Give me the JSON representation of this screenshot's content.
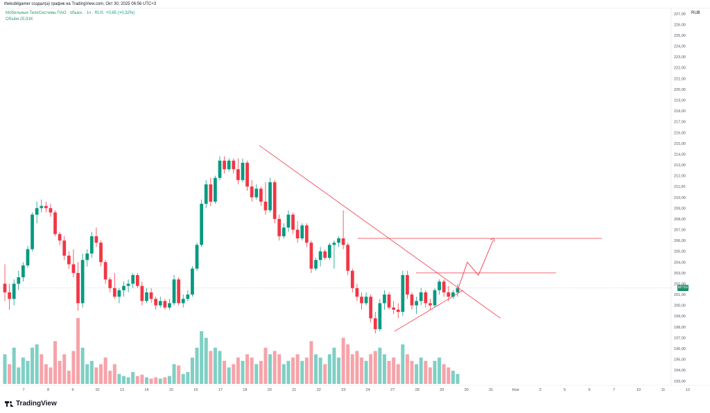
{
  "header": {
    "attribution": "thekubilgamer создал(а) график на TradingView.com, Окт 30, 2025 06:56 UTC+3",
    "symbol_line": {
      "name": "Мобильные ТелеСистемы ПАО · обыкн. · 1ч · RUS",
      "change": "+0,65 (+0,32%)"
    },
    "volume_line": "Объём 25,91K"
  },
  "price_axis": {
    "currency": "RUB",
    "labels": [
      "227,00",
      "226,00",
      "225,00",
      "224,00",
      "223,00",
      "222,00",
      "221,00",
      "220,00",
      "219,00",
      "218,00",
      "217,00",
      "216,00",
      "215,00",
      "214,00",
      "213,00",
      "212,00",
      "211,00",
      "210,00",
      "209,00",
      "208,00",
      "207,00",
      "206,00",
      "205,00",
      "204,00",
      "203,00",
      "202,00",
      "201,00",
      "200,00",
      "199,00",
      "198,00",
      "197,00",
      "196,00",
      "195,00",
      "194,00",
      "193,00"
    ]
  },
  "last_price_tag": {
    "label": "MTSS",
    "color": "#1a8f6b"
  },
  "time_axis": {
    "labels": [
      "7",
      "8",
      "9",
      "10",
      "13",
      "14",
      "15",
      "16",
      "17",
      "18",
      "20",
      "21",
      "22",
      "23",
      "24",
      "27",
      "28",
      "29",
      "30",
      "31",
      "Ноя",
      "3",
      "5",
      "6",
      "7",
      "10",
      "11",
      "12"
    ]
  },
  "footer": {
    "brand": "TradingView"
  },
  "colors": {
    "up": "#089981",
    "down": "#f23645",
    "up_volume": "#7fcfc4",
    "down_volume": "#f6a3a9",
    "drawing": "#f23645",
    "background": "#ffffff"
  },
  "chart_data": {
    "type": "candlestick",
    "interval": "1h",
    "currency": "RUB",
    "ylim": [
      192.6,
      227.5
    ],
    "last_price": 201.6,
    "candles": [
      [
        202.0,
        203.8,
        200.4,
        201.2
      ],
      [
        201.2,
        202.0,
        199.6,
        200.6
      ],
      [
        200.6,
        202.4,
        200.0,
        202.0
      ],
      [
        202.0,
        203.2,
        201.4,
        202.6
      ],
      [
        202.6,
        204.0,
        202.2,
        203.7
      ],
      [
        203.7,
        205.5,
        203.5,
        205.2
      ],
      [
        205.2,
        208.6,
        205.0,
        208.4
      ],
      [
        208.4,
        209.6,
        207.6,
        209.0
      ],
      [
        209.0,
        209.8,
        208.6,
        209.2
      ],
      [
        209.2,
        209.6,
        208.6,
        209.0
      ],
      [
        209.0,
        209.4,
        208.2,
        208.6
      ],
      [
        208.6,
        208.8,
        206.4,
        206.6
      ],
      [
        206.6,
        206.8,
        205.6,
        206.0
      ],
      [
        206.0,
        206.4,
        204.2,
        204.6
      ],
      [
        204.6,
        205.0,
        203.4,
        203.8
      ],
      [
        203.8,
        205.2,
        202.6,
        203.0
      ],
      [
        203.0,
        204.0,
        199.5,
        200.2
      ],
      [
        200.2,
        204.8,
        199.8,
        204.2
      ],
      [
        204.2,
        205.2,
        203.6,
        204.8
      ],
      [
        204.8,
        206.8,
        204.4,
        206.4
      ],
      [
        206.4,
        207.2,
        205.4,
        205.8
      ],
      [
        205.8,
        206.0,
        203.6,
        204.0
      ],
      [
        204.0,
        204.2,
        202.0,
        202.4
      ],
      [
        202.4,
        202.6,
        201.2,
        201.6
      ],
      [
        201.6,
        203.0,
        200.6,
        200.8
      ],
      [
        200.8,
        201.6,
        200.2,
        201.4
      ],
      [
        201.4,
        202.2,
        200.8,
        201.8
      ],
      [
        201.8,
        202.4,
        201.2,
        202.0
      ],
      [
        202.0,
        203.0,
        201.6,
        202.8
      ],
      [
        202.8,
        203.0,
        201.6,
        201.8
      ],
      [
        201.8,
        202.2,
        200.0,
        200.4
      ],
      [
        200.4,
        201.6,
        200.2,
        201.2
      ],
      [
        201.2,
        201.6,
        200.2,
        200.6
      ],
      [
        200.6,
        200.8,
        199.6,
        200.0
      ],
      [
        200.0,
        200.8,
        199.8,
        200.4
      ],
      [
        200.4,
        200.6,
        199.6,
        199.8
      ],
      [
        199.8,
        200.6,
        199.6,
        200.2
      ],
      [
        200.2,
        202.8,
        200.0,
        202.4
      ],
      [
        202.4,
        202.6,
        200.0,
        200.2
      ],
      [
        200.2,
        201.0,
        199.8,
        200.6
      ],
      [
        200.6,
        201.4,
        200.4,
        201.0
      ],
      [
        201.0,
        203.6,
        200.8,
        203.4
      ],
      [
        203.4,
        205.8,
        203.2,
        205.6
      ],
      [
        205.6,
        209.8,
        205.4,
        209.4
      ],
      [
        209.4,
        211.6,
        209.0,
        211.2
      ],
      [
        211.2,
        211.8,
        209.2,
        209.6
      ],
      [
        209.6,
        212.0,
        209.4,
        211.8
      ],
      [
        211.8,
        213.8,
        211.6,
        213.4
      ],
      [
        213.4,
        213.8,
        212.2,
        212.6
      ],
      [
        212.6,
        213.6,
        212.4,
        213.4
      ],
      [
        213.4,
        213.6,
        212.2,
        212.6
      ],
      [
        212.6,
        213.6,
        211.2,
        211.6
      ],
      [
        211.6,
        213.6,
        211.4,
        213.2
      ],
      [
        213.2,
        213.4,
        210.6,
        211.0
      ],
      [
        211.0,
        211.6,
        209.6,
        210.0
      ],
      [
        210.0,
        211.2,
        209.8,
        210.8
      ],
      [
        210.8,
        211.0,
        209.2,
        209.6
      ],
      [
        209.6,
        211.4,
        208.4,
        208.8
      ],
      [
        208.8,
        211.8,
        208.6,
        211.4
      ],
      [
        211.4,
        211.6,
        207.6,
        208.0
      ],
      [
        208.0,
        208.4,
        206.0,
        206.4
      ],
      [
        206.4,
        207.6,
        206.2,
        207.2
      ],
      [
        207.2,
        208.8,
        206.8,
        208.4
      ],
      [
        208.4,
        208.6,
        206.6,
        207.0
      ],
      [
        207.0,
        207.8,
        205.8,
        206.2
      ],
      [
        206.2,
        207.6,
        206.0,
        207.4
      ],
      [
        207.4,
        207.6,
        205.4,
        205.8
      ],
      [
        205.8,
        206.0,
        203.0,
        203.4
      ],
      [
        203.4,
        204.4,
        203.2,
        204.2
      ],
      [
        204.2,
        205.4,
        203.6,
        205.0
      ],
      [
        205.0,
        205.2,
        204.2,
        204.4
      ],
      [
        204.4,
        205.8,
        204.2,
        205.6
      ],
      [
        205.6,
        206.0,
        203.4,
        205.8
      ],
      [
        205.8,
        206.4,
        205.4,
        206.2
      ],
      [
        206.2,
        208.8,
        205.2,
        205.6
      ],
      [
        205.6,
        205.8,
        202.8,
        203.2
      ],
      [
        203.2,
        203.4,
        201.2,
        201.6
      ],
      [
        201.6,
        202.0,
        200.4,
        200.8
      ],
      [
        200.8,
        201.2,
        199.6,
        200.2
      ],
      [
        200.2,
        201.2,
        200.0,
        200.8
      ],
      [
        200.8,
        201.0,
        198.4,
        198.8
      ],
      [
        198.8,
        199.4,
        197.4,
        197.8
      ],
      [
        197.8,
        200.6,
        197.6,
        200.2
      ],
      [
        200.2,
        201.4,
        199.6,
        201.0
      ],
      [
        201.0,
        201.2,
        199.6,
        199.8
      ],
      [
        199.8,
        200.4,
        199.2,
        199.6
      ],
      [
        199.6,
        200.2,
        198.8,
        199.4
      ],
      [
        199.4,
        203.2,
        199.0,
        202.8
      ],
      [
        202.8,
        203.2,
        200.6,
        201.0
      ],
      [
        201.0,
        201.2,
        199.6,
        200.0
      ],
      [
        200.0,
        200.8,
        199.2,
        200.4
      ],
      [
        200.4,
        201.6,
        200.0,
        201.2
      ],
      [
        201.2,
        201.4,
        199.8,
        200.2
      ],
      [
        200.2,
        200.6,
        199.6,
        200.0
      ],
      [
        200.0,
        201.6,
        199.8,
        201.4
      ],
      [
        201.4,
        202.4,
        201.0,
        202.2
      ],
      [
        202.2,
        202.4,
        200.8,
        201.2
      ],
      [
        201.2,
        201.8,
        200.4,
        200.8
      ],
      [
        200.8,
        201.4,
        200.6,
        201.2
      ],
      [
        201.2,
        202.0,
        200.8,
        201.6
      ]
    ],
    "volume": [
      [
        0.45,
        1
      ],
      [
        0.3,
        0
      ],
      [
        0.55,
        1
      ],
      [
        0.25,
        1
      ],
      [
        0.4,
        1
      ],
      [
        0.35,
        1
      ],
      [
        0.55,
        1
      ],
      [
        0.6,
        1
      ],
      [
        0.45,
        0
      ],
      [
        0.3,
        0
      ],
      [
        0.25,
        0
      ],
      [
        0.65,
        0
      ],
      [
        0.35,
        0
      ],
      [
        0.45,
        0
      ],
      [
        0.2,
        0
      ],
      [
        0.5,
        0
      ],
      [
        1.0,
        0
      ],
      [
        0.55,
        1
      ],
      [
        0.3,
        1
      ],
      [
        0.35,
        1
      ],
      [
        0.25,
        0
      ],
      [
        0.3,
        0
      ],
      [
        0.4,
        0
      ],
      [
        0.2,
        0
      ],
      [
        0.3,
        0
      ],
      [
        0.15,
        1
      ],
      [
        0.12,
        1
      ],
      [
        0.1,
        1
      ],
      [
        0.18,
        1
      ],
      [
        0.12,
        0
      ],
      [
        0.14,
        0
      ],
      [
        0.1,
        1
      ],
      [
        0.08,
        0
      ],
      [
        0.1,
        0
      ],
      [
        0.08,
        1
      ],
      [
        0.1,
        0
      ],
      [
        0.12,
        1
      ],
      [
        0.3,
        1
      ],
      [
        0.28,
        0
      ],
      [
        0.15,
        1
      ],
      [
        0.18,
        1
      ],
      [
        0.4,
        1
      ],
      [
        0.55,
        1
      ],
      [
        0.8,
        1
      ],
      [
        0.7,
        1
      ],
      [
        0.5,
        0
      ],
      [
        0.55,
        1
      ],
      [
        0.5,
        1
      ],
      [
        0.35,
        0
      ],
      [
        0.25,
        1
      ],
      [
        0.3,
        0
      ],
      [
        0.4,
        0
      ],
      [
        0.35,
        1
      ],
      [
        0.45,
        0
      ],
      [
        0.4,
        0
      ],
      [
        0.3,
        1
      ],
      [
        0.35,
        0
      ],
      [
        0.55,
        0
      ],
      [
        0.45,
        1
      ],
      [
        0.5,
        0
      ],
      [
        0.45,
        0
      ],
      [
        0.3,
        1
      ],
      [
        0.35,
        1
      ],
      [
        0.4,
        0
      ],
      [
        0.45,
        0
      ],
      [
        0.35,
        1
      ],
      [
        0.4,
        0
      ],
      [
        0.65,
        0
      ],
      [
        0.45,
        1
      ],
      [
        0.4,
        1
      ],
      [
        0.3,
        0
      ],
      [
        0.45,
        1
      ],
      [
        0.55,
        1
      ],
      [
        0.4,
        1
      ],
      [
        0.7,
        0
      ],
      [
        0.6,
        0
      ],
      [
        0.45,
        0
      ],
      [
        0.5,
        0
      ],
      [
        0.4,
        0
      ],
      [
        0.35,
        1
      ],
      [
        0.45,
        0
      ],
      [
        0.5,
        0
      ],
      [
        0.55,
        1
      ],
      [
        0.45,
        1
      ],
      [
        0.35,
        0
      ],
      [
        0.4,
        0
      ],
      [
        0.3,
        0
      ],
      [
        0.6,
        1
      ],
      [
        0.45,
        0
      ],
      [
        0.35,
        0
      ],
      [
        0.3,
        1
      ],
      [
        0.4,
        1
      ],
      [
        0.35,
        0
      ],
      [
        0.25,
        0
      ],
      [
        0.35,
        1
      ],
      [
        0.4,
        1
      ],
      [
        0.3,
        0
      ],
      [
        0.25,
        0
      ],
      [
        0.2,
        1
      ],
      [
        0.15,
        1
      ]
    ],
    "drawings": {
      "descending_trendline": [
        [
          0,
          214.8
        ],
        [
          1,
          198.8
        ]
      ],
      "ascending_trendline": [
        [
          0,
          197.6
        ],
        [
          1,
          201.4
        ]
      ],
      "resistance_upper": 206.2,
      "resistance_lower": 203.0,
      "projection_arrow": "up"
    }
  }
}
